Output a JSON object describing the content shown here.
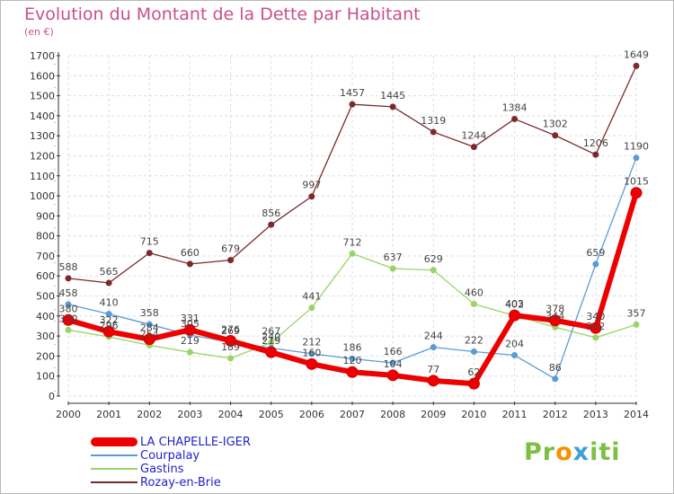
{
  "title": "Evolution du Montant de la Dette par Habitant",
  "subtitle": "(en €)",
  "logo": {
    "text": "Proxiti",
    "parts": [
      "Pr",
      "o",
      "x",
      "iti"
    ]
  },
  "chart_data": {
    "type": "line",
    "x": [
      2000,
      2001,
      2002,
      2003,
      2004,
      2005,
      2006,
      2007,
      2008,
      2009,
      2010,
      2011,
      2012,
      2013,
      2014
    ],
    "ylim": [
      0,
      1700
    ],
    "yticks": [
      0,
      100,
      200,
      300,
      400,
      500,
      600,
      700,
      800,
      900,
      1000,
      1100,
      1200,
      1300,
      1400,
      1500,
      1600,
      1700
    ],
    "grid": true,
    "legend_position": "bottom-left",
    "series": [
      {
        "name": "Rozay-en-Brie",
        "color": "#7a2a2a",
        "width": 1.3,
        "values": [
          588,
          565,
          715,
          660,
          679,
          856,
          997,
          1457,
          1445,
          1319,
          1244,
          1384,
          1302,
          1206,
          1649
        ]
      },
      {
        "name": "Gastins",
        "color": "#99d468",
        "width": 1.3,
        "values": [
          330,
          296,
          254,
          219,
          189,
          267,
          441,
          712,
          637,
          629,
          460,
          402,
          344,
          292,
          357
        ]
      },
      {
        "name": "Courpalay",
        "color": "#5b9bd5",
        "width": 1.3,
        "values": [
          458,
          410,
          358,
          305,
          269,
          240,
          212,
          186,
          166,
          244,
          222,
          204,
          86,
          659,
          1190
        ]
      },
      {
        "name": "LA CHAPELLE-IGER",
        "color": "#ee0000",
        "width": 6,
        "values": [
          380,
          322,
          284,
          331,
          276,
          219,
          160,
          120,
          104,
          77,
          62,
          403,
          378,
          340,
          1015
        ]
      }
    ]
  }
}
